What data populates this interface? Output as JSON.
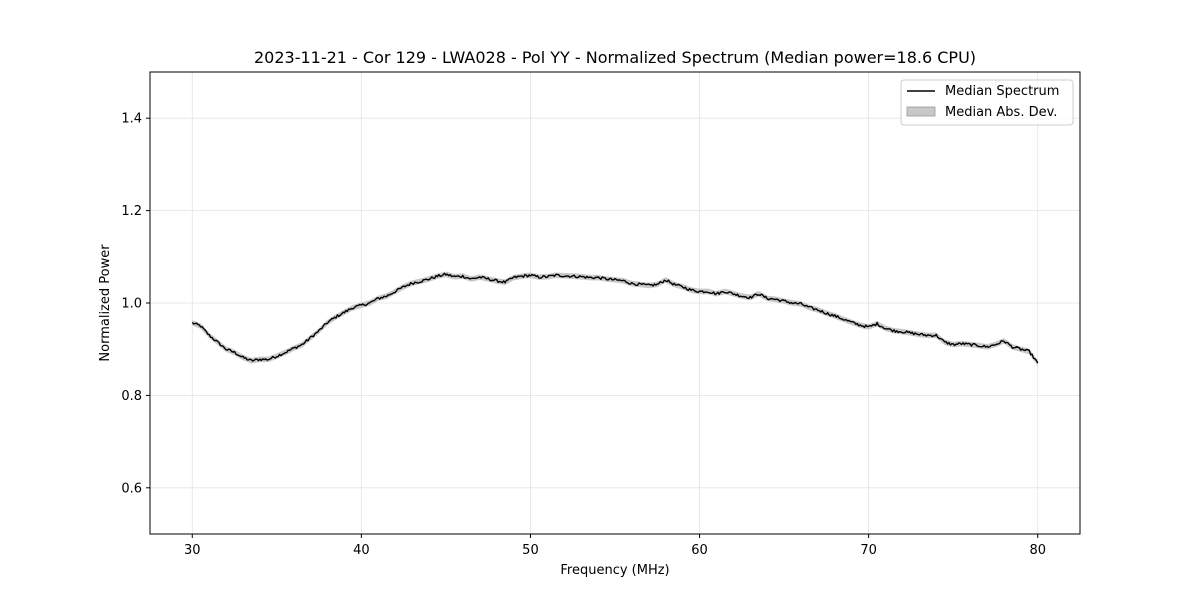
{
  "chart_data": {
    "type": "line",
    "title": "2023-11-21 - Cor 129 - LWA028 - Pol YY - Normalized Spectrum (Median power=18.6 CPU)",
    "xlabel": "Frequency (MHz)",
    "ylabel": "Normalized Power",
    "xlim": [
      27.5,
      82.5
    ],
    "ylim": [
      0.5,
      1.5
    ],
    "xticks": [
      30,
      40,
      50,
      60,
      70,
      80
    ],
    "yticks": [
      0.6,
      0.8,
      1.0,
      1.2,
      1.4
    ],
    "xtick_labels": [
      "30",
      "40",
      "50",
      "60",
      "70",
      "80"
    ],
    "ytick_labels": [
      "0.6",
      "0.8",
      "1.0",
      "1.2",
      "1.4"
    ],
    "grid": true,
    "legend_position": "top-right",
    "legend": [
      "Median Spectrum",
      "Median Abs. Dev."
    ],
    "mad_band_halfwidth": 0.006,
    "series": [
      {
        "name": "Median Spectrum",
        "color": "#000000",
        "x": [
          30.0,
          30.5,
          31.0,
          31.5,
          32.0,
          32.5,
          33.0,
          33.5,
          34.0,
          34.5,
          35.0,
          35.5,
          36.0,
          36.5,
          37.0,
          37.5,
          38.0,
          38.5,
          39.0,
          39.5,
          40.0,
          40.5,
          41.0,
          41.5,
          42.0,
          42.5,
          43.0,
          43.5,
          44.0,
          44.5,
          45.0,
          45.5,
          46.0,
          46.5,
          47.0,
          47.5,
          48.0,
          48.5,
          49.0,
          49.5,
          50.0,
          50.5,
          51.0,
          51.5,
          52.0,
          52.5,
          53.0,
          53.5,
          54.0,
          54.5,
          55.0,
          55.5,
          56.0,
          56.5,
          57.0,
          57.5,
          58.0,
          58.5,
          59.0,
          59.5,
          60.0,
          60.5,
          61.0,
          61.5,
          62.0,
          62.5,
          63.0,
          63.5,
          64.0,
          64.5,
          65.0,
          65.5,
          66.0,
          66.5,
          67.0,
          67.5,
          68.0,
          68.5,
          69.0,
          69.5,
          70.0,
          70.5,
          71.0,
          71.5,
          72.0,
          72.5,
          73.0,
          73.5,
          74.0,
          74.5,
          75.0,
          75.5,
          76.0,
          76.5,
          77.0,
          77.5,
          78.0,
          78.5,
          79.0,
          79.5,
          80.0
        ],
        "y": [
          0.957,
          0.95,
          0.93,
          0.915,
          0.9,
          0.893,
          0.882,
          0.875,
          0.878,
          0.878,
          0.885,
          0.893,
          0.902,
          0.91,
          0.925,
          0.94,
          0.958,
          0.97,
          0.98,
          0.99,
          0.995,
          1.0,
          1.01,
          1.015,
          1.025,
          1.035,
          1.043,
          1.047,
          1.052,
          1.058,
          1.062,
          1.057,
          1.058,
          1.052,
          1.056,
          1.052,
          1.048,
          1.045,
          1.055,
          1.058,
          1.06,
          1.056,
          1.057,
          1.06,
          1.059,
          1.058,
          1.057,
          1.055,
          1.055,
          1.052,
          1.05,
          1.048,
          1.042,
          1.04,
          1.038,
          1.04,
          1.05,
          1.04,
          1.035,
          1.028,
          1.025,
          1.025,
          1.02,
          1.025,
          1.02,
          1.015,
          1.012,
          1.02,
          1.01,
          1.008,
          1.004,
          1.0,
          0.998,
          0.99,
          0.985,
          0.978,
          0.972,
          0.965,
          0.958,
          0.952,
          0.948,
          0.955,
          0.945,
          0.94,
          0.938,
          0.935,
          0.932,
          0.93,
          0.93,
          0.915,
          0.91,
          0.912,
          0.91,
          0.908,
          0.905,
          0.91,
          0.918,
          0.905,
          0.9,
          0.895,
          0.87
        ]
      }
    ]
  }
}
